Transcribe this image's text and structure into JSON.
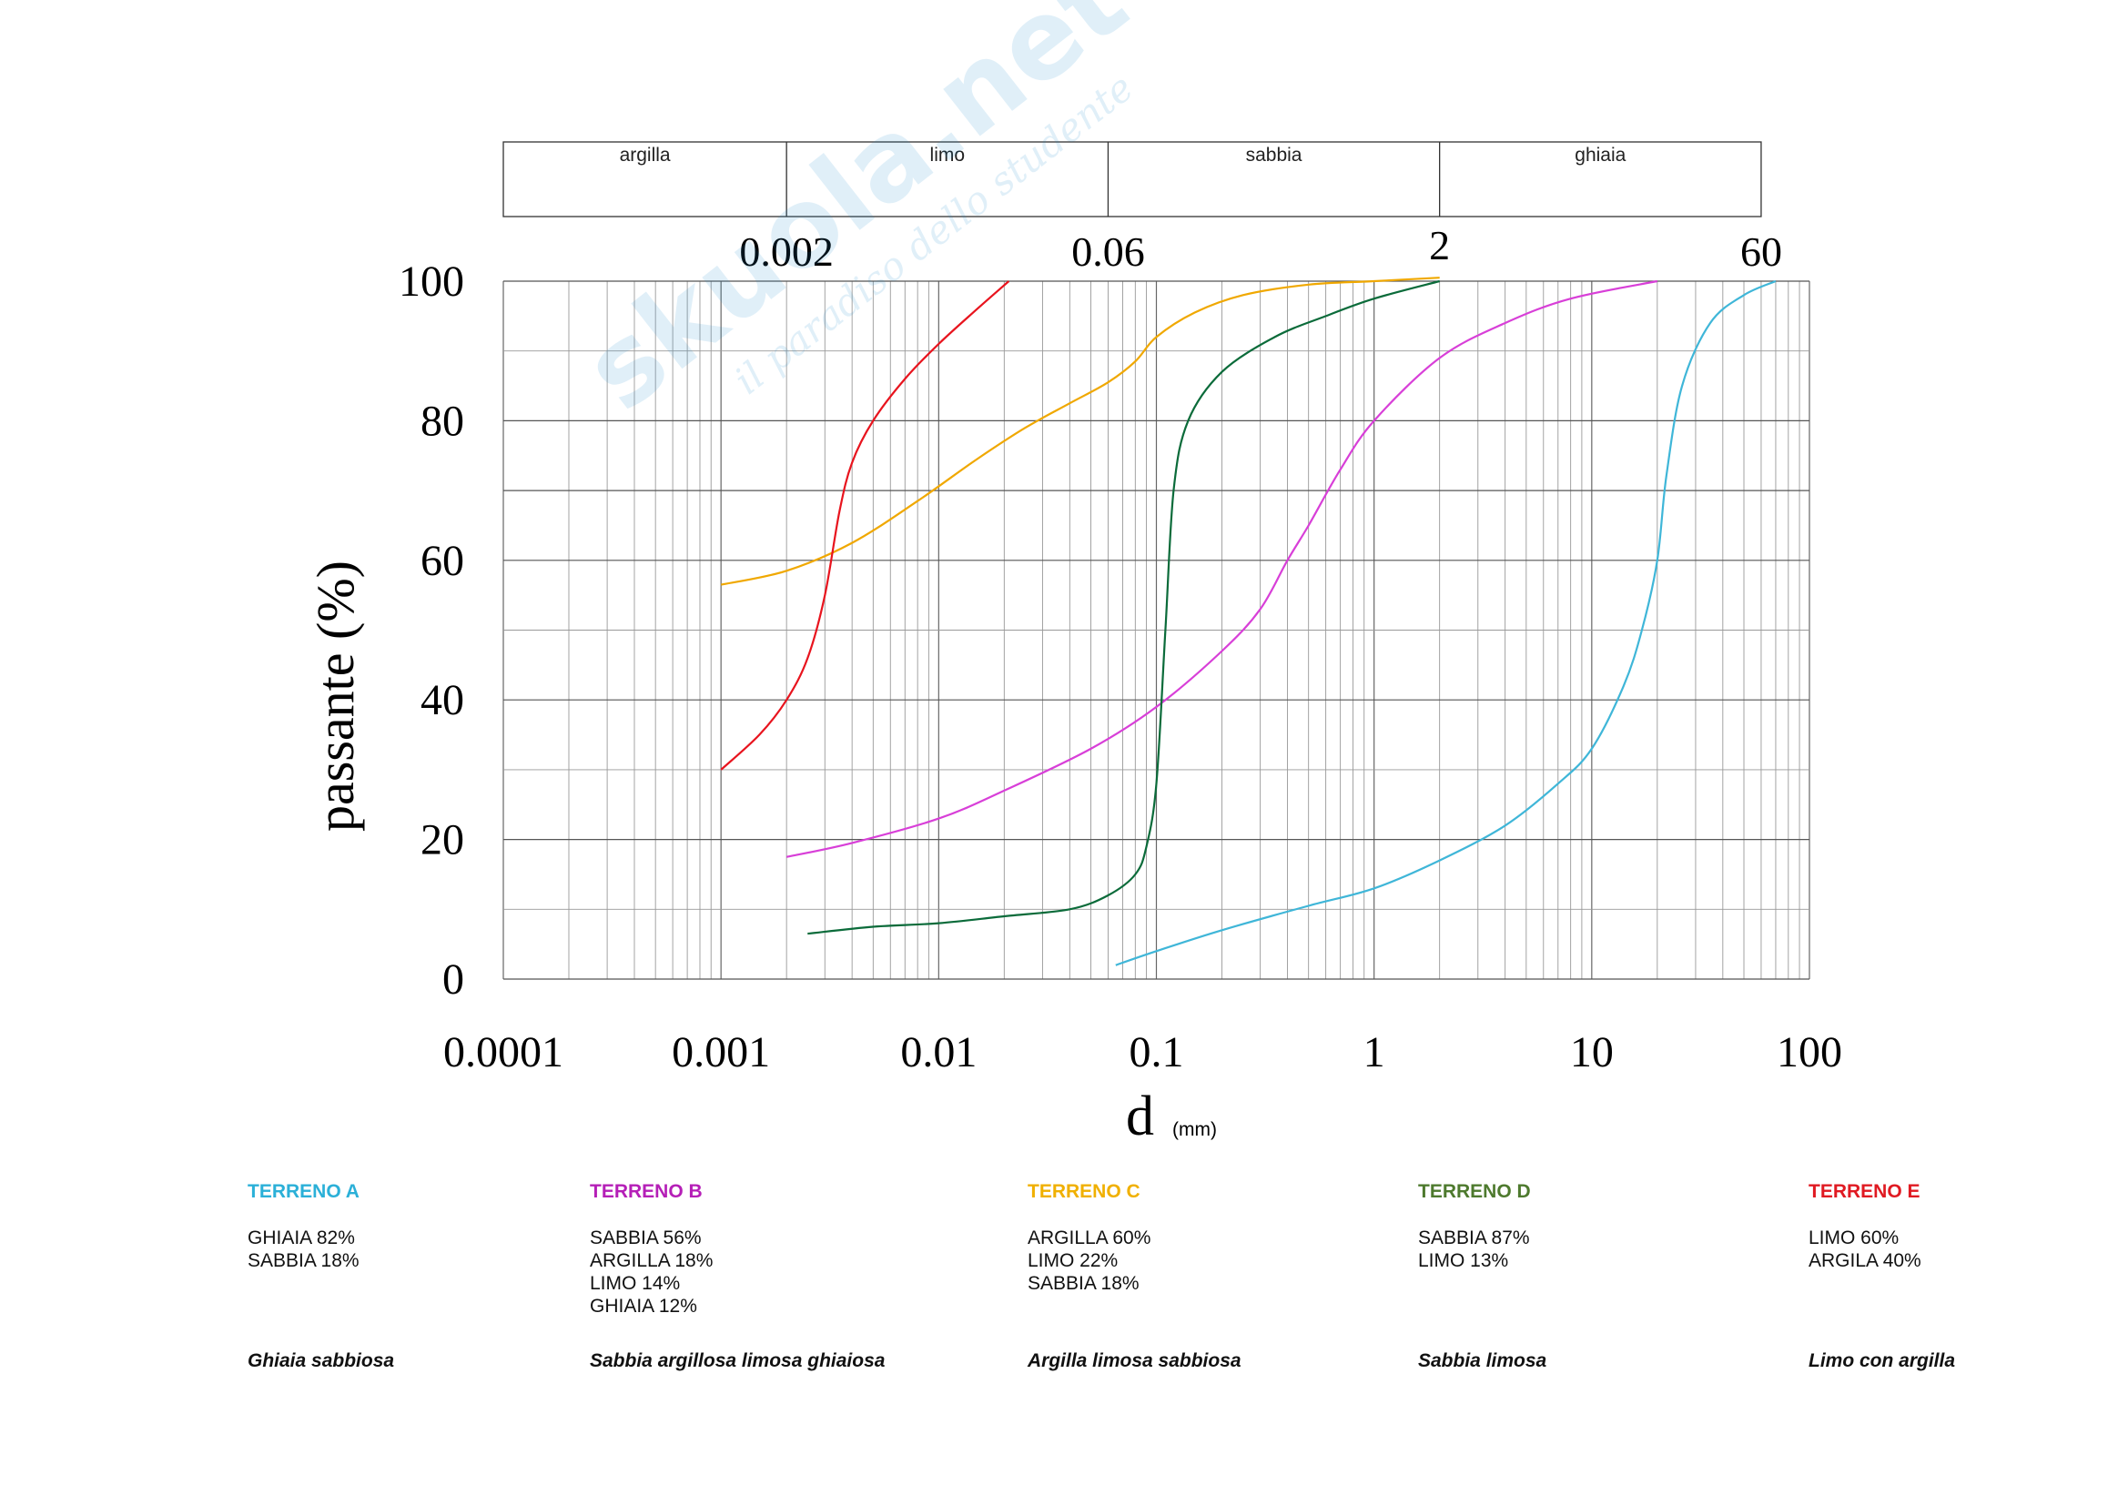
{
  "chart_data": {
    "type": "line",
    "x_scale": "log",
    "xlim": [
      0.0001,
      100
    ],
    "ylim": [
      0,
      100
    ],
    "ylabel": "passante (%)",
    "xlabel": "d",
    "xlabel_unit": "(mm)",
    "x_ticks": [
      0.0001,
      0.001,
      0.01,
      0.1,
      1,
      10,
      100
    ],
    "x_tick_labels": [
      "0.0001",
      "0.001",
      "0.01",
      "0.1",
      "1",
      "10",
      "100"
    ],
    "y_ticks": [
      0,
      20,
      40,
      60,
      80,
      100
    ],
    "y_tick_labels": [
      "0",
      "20",
      "40",
      "60",
      "80",
      "100"
    ],
    "grid": true,
    "classification": {
      "bands": [
        {
          "label": "argilla",
          "from": 0.0001,
          "to": 0.002
        },
        {
          "label": "limo",
          "from": 0.002,
          "to": 0.06
        },
        {
          "label": "sabbia",
          "from": 0.06,
          "to": 2
        },
        {
          "label": "ghiaia",
          "from": 2,
          "to": 60
        }
      ],
      "boundaries": [
        {
          "value": 0.002,
          "label": "0.002"
        },
        {
          "value": 0.06,
          "label": "0.06"
        },
        {
          "value": 2,
          "label": "2"
        },
        {
          "value": 60,
          "label": "60"
        }
      ]
    },
    "series": [
      {
        "name": "TERRENO A",
        "color": "#3fb6d8",
        "points": [
          [
            0.065,
            2
          ],
          [
            0.1,
            4
          ],
          [
            0.2,
            7
          ],
          [
            0.5,
            10.5
          ],
          [
            1,
            13
          ],
          [
            2,
            17
          ],
          [
            4,
            22
          ],
          [
            7,
            28
          ],
          [
            10,
            33
          ],
          [
            14,
            42
          ],
          [
            17,
            50
          ],
          [
            20,
            60
          ],
          [
            22,
            72
          ],
          [
            26,
            85
          ],
          [
            35,
            94
          ],
          [
            50,
            98
          ],
          [
            70,
            100
          ]
        ]
      },
      {
        "name": "TERRENO B",
        "color": "#d83fd8",
        "points": [
          [
            0.002,
            17.5
          ],
          [
            0.004,
            19.5
          ],
          [
            0.01,
            23
          ],
          [
            0.02,
            27
          ],
          [
            0.05,
            33
          ],
          [
            0.1,
            39
          ],
          [
            0.2,
            47
          ],
          [
            0.3,
            53
          ],
          [
            0.4,
            60
          ],
          [
            0.5,
            65
          ],
          [
            0.7,
            73
          ],
          [
            1,
            80
          ],
          [
            2,
            89
          ],
          [
            4,
            94
          ],
          [
            8,
            97.5
          ],
          [
            20,
            100
          ]
        ]
      },
      {
        "name": "TERRENO C",
        "color": "#f0a800",
        "points": [
          [
            0.001,
            56.5
          ],
          [
            0.002,
            58.5
          ],
          [
            0.004,
            62.5
          ],
          [
            0.008,
            68.5
          ],
          [
            0.015,
            74.5
          ],
          [
            0.025,
            79
          ],
          [
            0.04,
            82.5
          ],
          [
            0.06,
            85.5
          ],
          [
            0.08,
            88.5
          ],
          [
            0.1,
            92
          ],
          [
            0.15,
            95.5
          ],
          [
            0.25,
            98
          ],
          [
            0.5,
            99.5
          ],
          [
            1,
            100
          ],
          [
            2,
            100.5
          ]
        ]
      },
      {
        "name": "TERRENO D",
        "color": "#0b6b3a",
        "points": [
          [
            0.0025,
            6.5
          ],
          [
            0.005,
            7.5
          ],
          [
            0.01,
            8
          ],
          [
            0.02,
            9
          ],
          [
            0.04,
            10
          ],
          [
            0.06,
            12
          ],
          [
            0.08,
            15
          ],
          [
            0.09,
            19
          ],
          [
            0.1,
            28
          ],
          [
            0.11,
            50
          ],
          [
            0.12,
            70
          ],
          [
            0.14,
            80
          ],
          [
            0.2,
            87
          ],
          [
            0.35,
            92
          ],
          [
            0.6,
            95
          ],
          [
            1,
            97.5
          ],
          [
            2,
            100
          ]
        ]
      },
      {
        "name": "TERRENO E",
        "color": "#e8141e",
        "points": [
          [
            0.001,
            30
          ],
          [
            0.0015,
            35
          ],
          [
            0.002,
            40
          ],
          [
            0.0025,
            46
          ],
          [
            0.003,
            55
          ],
          [
            0.0035,
            67
          ],
          [
            0.004,
            74
          ],
          [
            0.005,
            80
          ],
          [
            0.007,
            86
          ],
          [
            0.01,
            91
          ],
          [
            0.015,
            96
          ],
          [
            0.021,
            100
          ]
        ]
      }
    ]
  },
  "legend": [
    {
      "name": "TERRENO A",
      "color": "#2bb0d8",
      "composition": [
        "GHIAIA 82%",
        "SABBIA 18%"
      ],
      "description": "Ghiaia sabbiosa"
    },
    {
      "name": "TERRENO B",
      "color": "#b51fb7",
      "composition": [
        "SABBIA 56%",
        "ARGILLA 18%",
        "LIMO 14%",
        "GHIAIA 12%"
      ],
      "description": "Sabbia argillosa limosa ghiaiosa"
    },
    {
      "name": "TERRENO C",
      "color": "#f0b000",
      "composition": [
        "ARGILLA 60%",
        "LIMO 22%",
        "SABBIA 18%"
      ],
      "description": "Argilla limosa sabbiosa"
    },
    {
      "name": "TERRENO D",
      "color": "#4e7a2e",
      "composition": [
        "SABBIA 87%",
        "LIMO 13%"
      ],
      "description": "Sabbia limosa"
    },
    {
      "name": "TERRENO E",
      "color": "#e01a22",
      "composition": [
        "LIMO 60%",
        "ARGILA 40%"
      ],
      "description": "Limo con argilla"
    }
  ],
  "watermark": {
    "text_main": "skuola.net",
    "text_sub": "il paradiso dello studente"
  }
}
